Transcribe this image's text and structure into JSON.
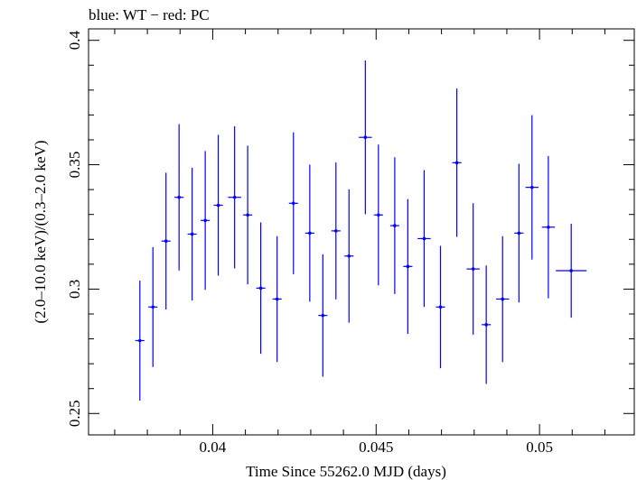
{
  "chart_data": {
    "type": "scatter",
    "title": "blue: WT − red: PC",
    "xlabel": "Time Since 55262.0 MJD (days)",
    "ylabel": "(2.0–10.0 keV)/(0.3–2.0 keV)",
    "xlim": [
      0.0362,
      0.0529
    ],
    "ylim": [
      0.2414,
      0.4046
    ],
    "x_ticks": [
      0.04,
      0.045,
      0.05
    ],
    "x_tick_labels": [
      "0.04",
      "0.045",
      "0.05"
    ],
    "y_ticks": [
      0.25,
      0.3,
      0.35,
      0.4
    ],
    "y_tick_labels": [
      "0.25",
      "0.3",
      "0.35",
      "0.4"
    ],
    "grid": false,
    "colors": {
      "points": "#0000ff",
      "axes": "#000000"
    },
    "series": [
      {
        "points": [
          {
            "x": 0.03777,
            "y": 0.2793,
            "xerr": 0.00014,
            "yerr_lo": 0.0241,
            "yerr_hi": 0.0241
          },
          {
            "x": 0.03817,
            "y": 0.2928,
            "xerr": 0.00014,
            "yerr_lo": 0.0241,
            "yerr_hi": 0.0241
          },
          {
            "x": 0.03857,
            "y": 0.3193,
            "xerr": 0.00014,
            "yerr_lo": 0.0275,
            "yerr_hi": 0.0275
          },
          {
            "x": 0.03897,
            "y": 0.3369,
            "xerr": 0.00014,
            "yerr_lo": 0.0294,
            "yerr_hi": 0.0294
          },
          {
            "x": 0.03937,
            "y": 0.3221,
            "xerr": 0.00014,
            "yerr_lo": 0.0267,
            "yerr_hi": 0.0267
          },
          {
            "x": 0.03977,
            "y": 0.3276,
            "xerr": 0.00014,
            "yerr_lo": 0.0279,
            "yerr_hi": 0.0279
          },
          {
            "x": 0.04017,
            "y": 0.3337,
            "xerr": 0.00014,
            "yerr_lo": 0.0283,
            "yerr_hi": 0.0283
          },
          {
            "x": 0.04067,
            "y": 0.3369,
            "xerr": 0.0002,
            "yerr_lo": 0.0286,
            "yerr_hi": 0.0286
          },
          {
            "x": 0.04107,
            "y": 0.3298,
            "xerr": 0.00014,
            "yerr_lo": 0.0279,
            "yerr_hi": 0.0279
          },
          {
            "x": 0.04147,
            "y": 0.3004,
            "xerr": 0.00014,
            "yerr_lo": 0.0264,
            "yerr_hi": 0.0264
          },
          {
            "x": 0.04197,
            "y": 0.296,
            "xerr": 0.00014,
            "yerr_lo": 0.0253,
            "yerr_hi": 0.0253
          },
          {
            "x": 0.04247,
            "y": 0.3345,
            "xerr": 0.00014,
            "yerr_lo": 0.0285,
            "yerr_hi": 0.0285
          },
          {
            "x": 0.04297,
            "y": 0.3225,
            "xerr": 0.00014,
            "yerr_lo": 0.0275,
            "yerr_hi": 0.0275
          },
          {
            "x": 0.04337,
            "y": 0.2894,
            "xerr": 0.00014,
            "yerr_lo": 0.0246,
            "yerr_hi": 0.0246
          },
          {
            "x": 0.04377,
            "y": 0.3234,
            "xerr": 0.00014,
            "yerr_lo": 0.0275,
            "yerr_hi": 0.0275
          },
          {
            "x": 0.04417,
            "y": 0.3133,
            "xerr": 0.00014,
            "yerr_lo": 0.0268,
            "yerr_hi": 0.0268
          },
          {
            "x": 0.04467,
            "y": 0.361,
            "xerr": 0.0002,
            "yerr_lo": 0.0309,
            "yerr_hi": 0.0309
          },
          {
            "x": 0.04507,
            "y": 0.3298,
            "xerr": 0.00014,
            "yerr_lo": 0.0283,
            "yerr_hi": 0.0283
          },
          {
            "x": 0.04557,
            "y": 0.3255,
            "xerr": 0.00014,
            "yerr_lo": 0.0275,
            "yerr_hi": 0.0275
          },
          {
            "x": 0.04597,
            "y": 0.3091,
            "xerr": 0.00014,
            "yerr_lo": 0.0271,
            "yerr_hi": 0.0271
          },
          {
            "x": 0.04647,
            "y": 0.3203,
            "xerr": 0.0002,
            "yerr_lo": 0.0275,
            "yerr_hi": 0.0275
          },
          {
            "x": 0.04697,
            "y": 0.2928,
            "xerr": 0.00014,
            "yerr_lo": 0.0246,
            "yerr_hi": 0.0246
          },
          {
            "x": 0.04747,
            "y": 0.3508,
            "xerr": 0.00014,
            "yerr_lo": 0.0298,
            "yerr_hi": 0.0298
          },
          {
            "x": 0.04797,
            "y": 0.3081,
            "xerr": 0.0002,
            "yerr_lo": 0.0264,
            "yerr_hi": 0.0264
          },
          {
            "x": 0.04837,
            "y": 0.2857,
            "xerr": 0.00014,
            "yerr_lo": 0.0238,
            "yerr_hi": 0.0238
          },
          {
            "x": 0.04887,
            "y": 0.296,
            "xerr": 0.0002,
            "yerr_lo": 0.0253,
            "yerr_hi": 0.0253
          },
          {
            "x": 0.04937,
            "y": 0.3225,
            "xerr": 0.00014,
            "yerr_lo": 0.0279,
            "yerr_hi": 0.0279
          },
          {
            "x": 0.04977,
            "y": 0.3409,
            "xerr": 0.0002,
            "yerr_lo": 0.029,
            "yerr_hi": 0.029
          },
          {
            "x": 0.05027,
            "y": 0.3249,
            "xerr": 0.0002,
            "yerr_lo": 0.0286,
            "yerr_hi": 0.0286
          },
          {
            "x": 0.05097,
            "y": 0.3074,
            "xerr": 0.00047,
            "yerr_lo": 0.0189,
            "yerr_hi": 0.0189
          }
        ]
      }
    ]
  }
}
